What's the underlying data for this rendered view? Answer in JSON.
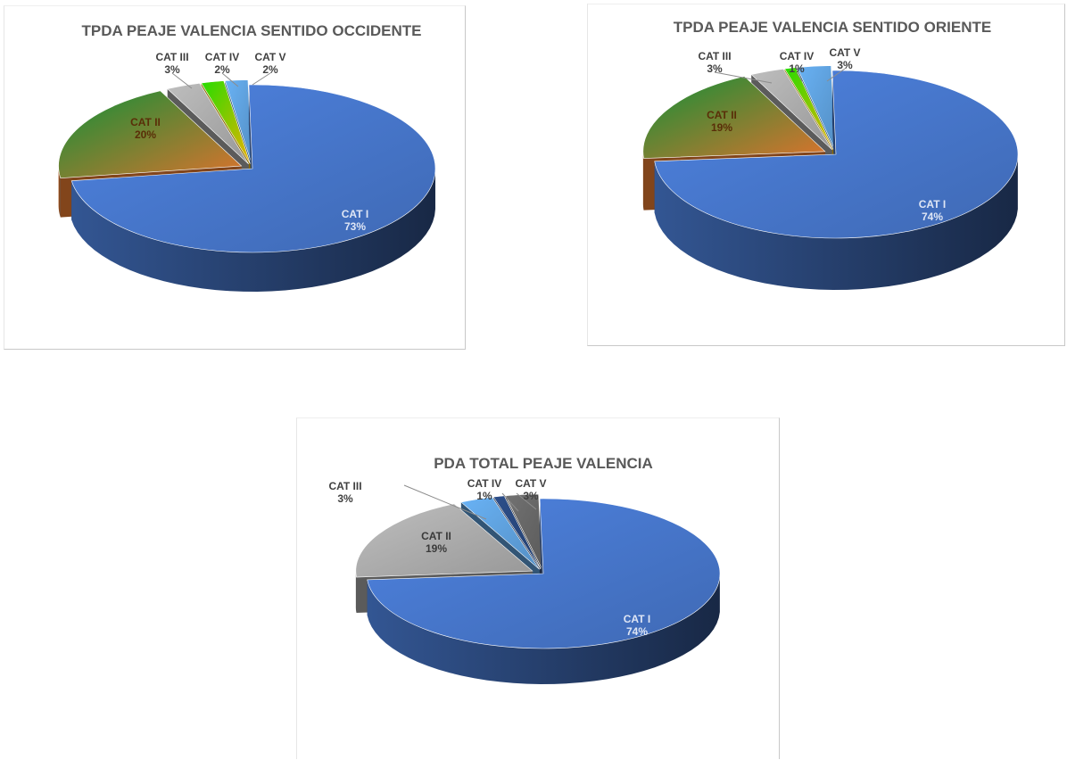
{
  "chart_data": [
    {
      "type": "pie",
      "title": "TPDA PEAJE VALENCIA SENTIDO OCCIDENTE",
      "categories": [
        "CAT I",
        "CAT II",
        "CAT III",
        "CAT IV",
        "CAT V"
      ],
      "values": [
        73,
        20,
        3,
        2,
        2
      ],
      "labels": [
        "73%",
        "20%",
        "3%",
        "2%",
        "2%"
      ],
      "colors": [
        "#4472c4",
        "#ed7d31",
        "#a5a5a5",
        "#ffc000",
        "#5b9bd5"
      ],
      "style": "3d-pie-exploded"
    },
    {
      "type": "pie",
      "title": "TPDA PEAJE VALENCIA SENTIDO ORIENTE",
      "categories": [
        "CAT I",
        "CAT II",
        "CAT III",
        "CAT IV",
        "CAT V"
      ],
      "values": [
        74,
        19,
        3,
        1,
        3
      ],
      "labels": [
        "74%",
        "19%",
        "3%",
        "1%",
        "3%"
      ],
      "colors": [
        "#4472c4",
        "#ed7d31",
        "#a5a5a5",
        "#ffc000",
        "#5b9bd5"
      ],
      "style": "3d-pie-exploded"
    },
    {
      "type": "pie",
      "title": "PDA TOTAL PEAJE VALENCIA",
      "categories": [
        "CAT I",
        "CAT II",
        "CAT III",
        "CAT IV",
        "CAT V"
      ],
      "values": [
        74,
        19,
        3,
        1,
        3
      ],
      "labels": [
        "74%",
        "19%",
        "3%",
        "1%",
        "3%"
      ],
      "colors": [
        "#4472c4",
        "#a5a5a5",
        "#5b9bd5",
        "#264478",
        "#636363"
      ],
      "style": "3d-pie-exploded"
    }
  ]
}
